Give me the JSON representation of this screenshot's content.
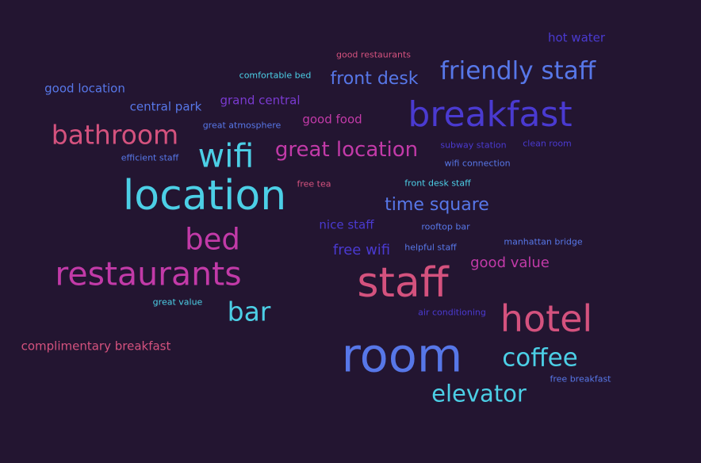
{
  "palette": {
    "background": "#231531",
    "cyan": "#4ccfe6",
    "blue": "#5777e8",
    "indigo": "#4a3ad0",
    "purple": "#7a3ad0",
    "magenta": "#c23aa8",
    "pink": "#d4527e"
  },
  "words": [
    {
      "text": "hot water",
      "color": "indigo"
    },
    {
      "text": "good restaurants",
      "color": "pink"
    },
    {
      "text": "comfortable bed",
      "color": "cyan"
    },
    {
      "text": "front desk",
      "color": "blue"
    },
    {
      "text": "friendly staff",
      "color": "blue"
    },
    {
      "text": "good location",
      "color": "blue"
    },
    {
      "text": "central park",
      "color": "blue"
    },
    {
      "text": "grand central",
      "color": "purple"
    },
    {
      "text": "breakfast",
      "color": "indigo"
    },
    {
      "text": "great atmosphere",
      "color": "blue"
    },
    {
      "text": "good food",
      "color": "magenta"
    },
    {
      "text": "bathroom",
      "color": "pink"
    },
    {
      "text": "wifi",
      "color": "cyan"
    },
    {
      "text": "great location",
      "color": "magenta"
    },
    {
      "text": "subway station",
      "color": "indigo"
    },
    {
      "text": "clean room",
      "color": "indigo"
    },
    {
      "text": "efficient staff",
      "color": "blue"
    },
    {
      "text": "wifi connection",
      "color": "blue"
    },
    {
      "text": "location",
      "color": "cyan"
    },
    {
      "text": "free tea",
      "color": "pink"
    },
    {
      "text": "front desk staff",
      "color": "cyan"
    },
    {
      "text": "time square",
      "color": "blue"
    },
    {
      "text": "nice staff",
      "color": "indigo"
    },
    {
      "text": "rooftop bar",
      "color": "blue"
    },
    {
      "text": "bed",
      "color": "magenta"
    },
    {
      "text": "free wifi",
      "color": "indigo"
    },
    {
      "text": "helpful staff",
      "color": "blue"
    },
    {
      "text": "manhattan bridge",
      "color": "blue"
    },
    {
      "text": "good value",
      "color": "magenta"
    },
    {
      "text": "restaurants",
      "color": "magenta"
    },
    {
      "text": "staff",
      "color": "pink"
    },
    {
      "text": "great value",
      "color": "cyan"
    },
    {
      "text": "bar",
      "color": "cyan"
    },
    {
      "text": "air conditioning",
      "color": "indigo"
    },
    {
      "text": "hotel",
      "color": "pink"
    },
    {
      "text": "complimentary breakfast",
      "color": "pink"
    },
    {
      "text": "room",
      "color": "blue"
    },
    {
      "text": "coffee",
      "color": "cyan"
    },
    {
      "text": "free breakfast",
      "color": "blue"
    },
    {
      "text": "elevator",
      "color": "cyan"
    }
  ]
}
